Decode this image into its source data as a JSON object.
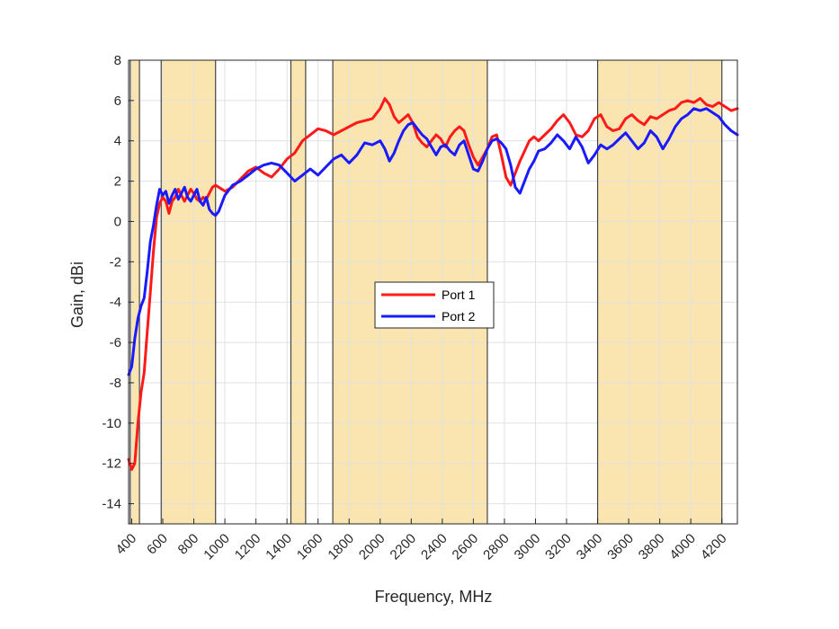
{
  "chart_data": {
    "type": "line",
    "xlabel": "Frequency, MHz",
    "ylabel": "Gain, dBi",
    "xlim": [
      380,
      4300
    ],
    "ylim": [
      -15,
      8
    ],
    "xticks": [
      400,
      600,
      800,
      1000,
      1200,
      1400,
      1600,
      1800,
      2000,
      2200,
      2400,
      2600,
      2800,
      3000,
      3200,
      3400,
      3600,
      3800,
      4000,
      4200
    ],
    "xtick_labels": [
      "400",
      "600",
      "800",
      "1000",
      "1200",
      "1400",
      "1600",
      "1800",
      "2000",
      "2200",
      "2400",
      "2600",
      "2800",
      "3000",
      "3200",
      "3400",
      "3600",
      "3800",
      "4000",
      "4200"
    ],
    "yticks": [
      8,
      6,
      4,
      2,
      0,
      -2,
      -4,
      -6,
      -8,
      -10,
      -12,
      -14
    ],
    "ytick_labels": [
      "8",
      "6",
      "4",
      "2",
      "0",
      "-2",
      "-4",
      "-6",
      "-8",
      "-10",
      "-12",
      "-14"
    ],
    "grid": true,
    "legend_position": "center",
    "shaded_bands": [
      {
        "x_start": 390,
        "x_end": 450
      },
      {
        "x_start": 590,
        "x_end": 940
      },
      {
        "x_start": 1425,
        "x_end": 1520
      },
      {
        "x_start": 1695,
        "x_end": 2690
      },
      {
        "x_start": 3400,
        "x_end": 4200
      }
    ],
    "colors": {
      "band": "#fae5b1",
      "band_edge": "#444444",
      "grid": "#e1e1e1",
      "axis": "#262626"
    },
    "series": [
      {
        "name": "Port 1",
        "color": "#ff1a1a",
        "x": [
          380,
          400,
          420,
          440,
          460,
          480,
          500,
          520,
          540,
          560,
          580,
          600,
          620,
          640,
          660,
          680,
          700,
          720,
          740,
          760,
          780,
          800,
          820,
          840,
          860,
          880,
          900,
          920,
          940,
          960,
          1000,
          1050,
          1100,
          1150,
          1200,
          1250,
          1300,
          1350,
          1400,
          1450,
          1500,
          1550,
          1600,
          1650,
          1700,
          1750,
          1800,
          1850,
          1900,
          1950,
          2000,
          2030,
          2060,
          2090,
          2120,
          2150,
          2180,
          2210,
          2240,
          2270,
          2300,
          2330,
          2360,
          2390,
          2420,
          2450,
          2480,
          2510,
          2540,
          2570,
          2600,
          2630,
          2660,
          2690,
          2720,
          2750,
          2780,
          2810,
          2840,
          2870,
          2900,
          2930,
          2960,
          2990,
          3020,
          3060,
          3100,
          3140,
          3180,
          3220,
          3260,
          3300,
          3340,
          3380,
          3420,
          3460,
          3500,
          3540,
          3580,
          3620,
          3660,
          3700,
          3740,
          3780,
          3820,
          3860,
          3900,
          3940,
          3980,
          4020,
          4060,
          4100,
          4140,
          4180,
          4220,
          4260,
          4300
        ],
        "y": [
          -11.8,
          -12.3,
          -12.0,
          -10.0,
          -8.5,
          -7.5,
          -5.5,
          -3.5,
          -1.5,
          0.2,
          0.9,
          1.2,
          1.0,
          0.4,
          1.0,
          1.2,
          1.6,
          1.3,
          1.0,
          1.3,
          1.6,
          1.4,
          1.1,
          1.0,
          1.2,
          1.1,
          1.4,
          1.7,
          1.8,
          1.7,
          1.5,
          1.7,
          2.1,
          2.5,
          2.7,
          2.4,
          2.2,
          2.6,
          3.1,
          3.4,
          4.0,
          4.3,
          4.6,
          4.5,
          4.3,
          4.5,
          4.7,
          4.9,
          5.0,
          5.1,
          5.6,
          6.1,
          5.8,
          5.2,
          4.9,
          5.1,
          5.3,
          4.9,
          4.2,
          3.9,
          3.7,
          4.0,
          4.3,
          4.1,
          3.7,
          4.2,
          4.5,
          4.7,
          4.5,
          3.8,
          3.2,
          2.8,
          3.2,
          3.6,
          4.2,
          4.3,
          3.3,
          2.2,
          1.8,
          2.4,
          3.0,
          3.5,
          4.0,
          4.2,
          4.0,
          4.3,
          4.6,
          5.0,
          5.3,
          4.9,
          4.3,
          4.2,
          4.5,
          5.1,
          5.3,
          4.7,
          4.5,
          4.6,
          5.1,
          5.3,
          5.0,
          4.8,
          5.2,
          5.1,
          5.3,
          5.5,
          5.6,
          5.9,
          6.0,
          5.9,
          6.1,
          5.8,
          5.7,
          5.9,
          5.7,
          5.5,
          5.6
        ],
        "width": 3
      },
      {
        "name": "Port 2",
        "color": "#1a1aff",
        "x": [
          380,
          400,
          420,
          440,
          460,
          480,
          500,
          520,
          540,
          560,
          580,
          600,
          620,
          640,
          660,
          680,
          700,
          720,
          740,
          760,
          780,
          800,
          820,
          840,
          860,
          880,
          900,
          920,
          940,
          960,
          1000,
          1050,
          1100,
          1150,
          1200,
          1250,
          1300,
          1350,
          1400,
          1450,
          1500,
          1550,
          1600,
          1650,
          1700,
          1750,
          1800,
          1850,
          1900,
          1950,
          2000,
          2030,
          2060,
          2090,
          2120,
          2150,
          2180,
          2210,
          2240,
          2270,
          2300,
          2330,
          2360,
          2390,
          2420,
          2450,
          2480,
          2510,
          2540,
          2570,
          2600,
          2630,
          2660,
          2690,
          2720,
          2750,
          2780,
          2810,
          2840,
          2870,
          2900,
          2930,
          2960,
          2990,
          3020,
          3060,
          3100,
          3140,
          3180,
          3220,
          3260,
          3300,
          3340,
          3380,
          3420,
          3460,
          3500,
          3540,
          3580,
          3620,
          3660,
          3700,
          3740,
          3780,
          3820,
          3860,
          3900,
          3940,
          3980,
          4020,
          4060,
          4100,
          4140,
          4180,
          4220,
          4260,
          4300
        ],
        "y": [
          -7.6,
          -7.2,
          -5.8,
          -4.8,
          -4.2,
          -3.8,
          -2.5,
          -1.0,
          -0.2,
          0.8,
          1.6,
          1.3,
          1.5,
          0.9,
          1.3,
          1.6,
          1.1,
          1.4,
          1.7,
          1.2,
          1.0,
          1.3,
          1.6,
          1.0,
          0.8,
          1.2,
          0.6,
          0.4,
          0.3,
          0.5,
          1.3,
          1.8,
          2.0,
          2.3,
          2.6,
          2.8,
          2.9,
          2.8,
          2.4,
          2.0,
          2.3,
          2.6,
          2.3,
          2.7,
          3.1,
          3.3,
          2.9,
          3.3,
          3.9,
          3.8,
          4.0,
          3.6,
          3.0,
          3.4,
          4.0,
          4.5,
          4.8,
          4.9,
          4.6,
          4.3,
          4.1,
          3.7,
          3.3,
          3.7,
          3.8,
          3.5,
          3.3,
          3.8,
          4.0,
          3.3,
          2.6,
          2.5,
          3.0,
          3.6,
          4.0,
          4.1,
          3.9,
          3.6,
          2.8,
          1.7,
          1.4,
          2.0,
          2.6,
          3.0,
          3.5,
          3.6,
          3.9,
          4.3,
          4.0,
          3.6,
          4.2,
          3.7,
          2.9,
          3.3,
          3.8,
          3.6,
          3.8,
          4.1,
          4.4,
          4.0,
          3.6,
          3.9,
          4.5,
          4.2,
          3.6,
          4.1,
          4.7,
          5.1,
          5.3,
          5.6,
          5.5,
          5.6,
          5.4,
          5.2,
          4.8,
          4.5,
          4.3
        ],
        "width": 3
      }
    ]
  }
}
